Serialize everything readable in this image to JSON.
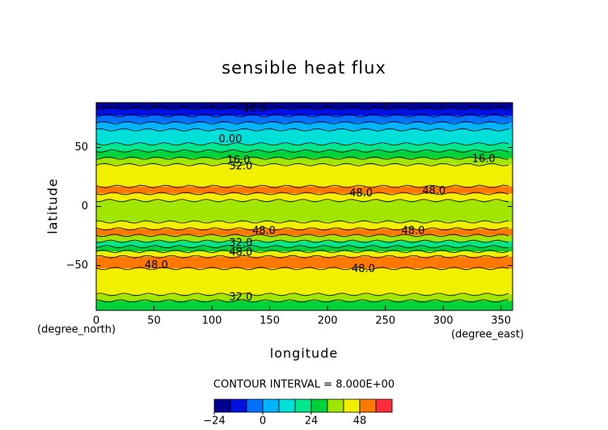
{
  "chart_data": {
    "type": "contour",
    "title": "sensible heat flux",
    "xlabel": "longitude",
    "ylabel": "latitude",
    "y_unit_label": "(degree_north)",
    "x_unit_label": "(degree_east)",
    "contour_interval_label": "CONTOUR INTERVAL = 8.000E+00",
    "xlim": [
      0,
      360
    ],
    "ylim": [
      -88,
      88
    ],
    "xticks": [
      0,
      50,
      100,
      150,
      200,
      250,
      300,
      350
    ],
    "yticks": [
      {
        "value": -50,
        "label": "−50"
      },
      0,
      50
    ],
    "profile": {
      "lat": [
        86,
        80,
        74,
        68,
        62,
        56,
        50,
        44,
        38,
        33,
        26,
        20,
        14,
        8,
        2,
        -4,
        -10,
        -16,
        -22,
        -27,
        -32,
        -36,
        -40,
        -45,
        -50,
        -55,
        -60,
        -66,
        -72,
        -77,
        -83,
        -87
      ],
      "values": [
        -20,
        -12,
        -4,
        4,
        10,
        12,
        20,
        28,
        36,
        44,
        44,
        44,
        50,
        44,
        36,
        36,
        36,
        44,
        50,
        36,
        20,
        28,
        44,
        50,
        50,
        44,
        44,
        44,
        44,
        36,
        28,
        28
      ]
    },
    "colorbar": {
      "bounds": [
        -24,
        -16,
        -8,
        0,
        8,
        16,
        24,
        32,
        40,
        48,
        56,
        64
      ],
      "colors": [
        "#000090",
        "#0010e0",
        "#0070ff",
        "#00b4ff",
        "#00e0d8",
        "#00e68c",
        "#00d23c",
        "#a0e600",
        "#f0f000",
        "#ff7800",
        "#ff2d3c"
      ],
      "ticks": [
        {
          "value": -24,
          "label": "−24"
        },
        0,
        24,
        48
      ]
    },
    "contour_labels": [
      {
        "text": "16.0",
        "x": 137,
        "y": 83
      },
      {
        "text": "0.00",
        "x": 116,
        "y": 57
      },
      {
        "text": "16.0",
        "x": 123,
        "y": 39
      },
      {
        "text": "32.0",
        "x": 125,
        "y": 34
      },
      {
        "text": "16.0",
        "x": 335,
        "y": 40
      },
      {
        "text": "48.0",
        "x": 229,
        "y": 11
      },
      {
        "text": "48.0",
        "x": 292,
        "y": 13
      },
      {
        "text": "48.0",
        "x": 145,
        "y": -21
      },
      {
        "text": "48.0",
        "x": 274,
        "y": -21
      },
      {
        "text": "32.0",
        "x": 125,
        "y": -31
      },
      {
        "text": "48.0",
        "x": 125,
        "y": -39
      },
      {
        "text": "48.0",
        "x": 52,
        "y": -50
      },
      {
        "text": "48.0",
        "x": 231,
        "y": -53
      },
      {
        "text": "32.0",
        "x": 125,
        "y": -77
      }
    ]
  }
}
